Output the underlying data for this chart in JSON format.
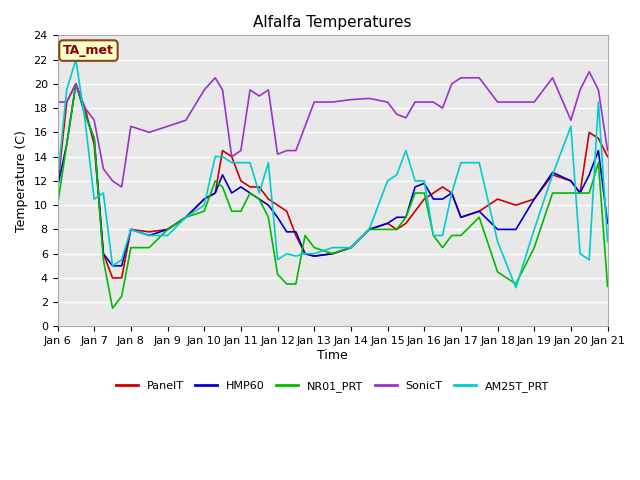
{
  "title": "Alfalfa Temperatures",
  "xlabel": "Time",
  "ylabel": "Temperature (C)",
  "ylim": [
    0,
    24
  ],
  "background_color": "#ffffff",
  "plot_bg_color": "#e8e8e8",
  "annotation_text": "TA_met",
  "annotation_color": "#8B0000",
  "annotation_bg": "#ffffcc",
  "annotation_border": "#8B4513",
  "x_tick_labels": [
    "Jan 6",
    "Jan 7",
    "Jan 8",
    "Jan 9",
    "Jan 10",
    "Jan 11",
    "Jan 12",
    "Jan 13",
    "Jan 14",
    "Jan 15",
    "Jan 16",
    "Jan 17",
    "Jan 18",
    "Jan 19",
    "Jan 20",
    "Jan 21"
  ],
  "legend_labels": [
    "PanelT",
    "HMP60",
    "NR01_PRT",
    "SonicT",
    "AM25T_PRT"
  ],
  "legend_colors": [
    "#cc0000",
    "#0000cc",
    "#00bb00",
    "#9933cc",
    "#00cccc"
  ],
  "series": {
    "PanelT": {
      "color": "#cc0000",
      "x": [
        0,
        0.25,
        0.5,
        0.75,
        1.0,
        1.25,
        1.5,
        1.75,
        2.0,
        2.5,
        3.0,
        3.5,
        4.0,
        4.3,
        4.5,
        4.75,
        5.0,
        5.25,
        5.5,
        5.75,
        6.0,
        6.25,
        6.5,
        6.75,
        7.0,
        7.5,
        8.0,
        8.5,
        9.0,
        9.25,
        9.5,
        9.75,
        10.0,
        10.25,
        10.5,
        10.75,
        11.0,
        11.5,
        12.0,
        12.5,
        13.0,
        13.5,
        14.0,
        14.25,
        14.5,
        14.75,
        15.0
      ],
      "y": [
        11.5,
        18.5,
        20.0,
        18.0,
        15.0,
        6.0,
        4.0,
        4.0,
        8.0,
        7.8,
        8.0,
        9.0,
        10.5,
        11.0,
        14.5,
        14.0,
        12.0,
        11.5,
        11.5,
        10.5,
        10.0,
        9.5,
        7.5,
        6.0,
        5.8,
        6.0,
        6.5,
        8.0,
        8.5,
        8.0,
        8.5,
        9.5,
        10.5,
        11.0,
        11.5,
        11.0,
        9.0,
        9.5,
        10.5,
        10.0,
        10.5,
        12.5,
        12.0,
        11.0,
        16.0,
        15.5,
        14.0
      ]
    },
    "HMP60": {
      "color": "#0000cc",
      "x": [
        0,
        0.25,
        0.5,
        0.75,
        1.0,
        1.25,
        1.5,
        1.75,
        2.0,
        2.5,
        3.0,
        3.5,
        4.0,
        4.3,
        4.5,
        4.75,
        5.0,
        5.25,
        5.5,
        5.75,
        6.0,
        6.25,
        6.5,
        6.75,
        7.0,
        7.5,
        8.0,
        8.5,
        9.0,
        9.25,
        9.5,
        9.75,
        10.0,
        10.25,
        10.5,
        10.75,
        11.0,
        11.5,
        12.0,
        12.5,
        13.0,
        13.5,
        14.0,
        14.25,
        14.5,
        14.75,
        15.0
      ],
      "y": [
        11.5,
        15.0,
        20.0,
        17.5,
        15.5,
        6.0,
        5.0,
        5.0,
        8.0,
        7.5,
        8.0,
        9.0,
        10.5,
        11.0,
        12.5,
        11.0,
        11.5,
        11.0,
        10.5,
        10.0,
        9.0,
        7.8,
        7.8,
        6.0,
        5.8,
        6.0,
        6.5,
        8.0,
        8.5,
        9.0,
        9.0,
        11.5,
        11.8,
        10.5,
        10.5,
        11.0,
        9.0,
        9.5,
        8.0,
        8.0,
        10.5,
        12.7,
        12.0,
        11.0,
        12.5,
        14.5,
        8.5
      ]
    },
    "NR01_PRT": {
      "color": "#00bb00",
      "x": [
        0,
        0.25,
        0.5,
        0.75,
        1.0,
        1.25,
        1.5,
        1.75,
        2.0,
        2.5,
        3.0,
        3.5,
        4.0,
        4.3,
        4.5,
        4.75,
        5.0,
        5.25,
        5.5,
        5.75,
        6.0,
        6.25,
        6.5,
        6.75,
        7.0,
        7.5,
        8.0,
        8.5,
        9.0,
        9.25,
        9.5,
        9.75,
        10.0,
        10.25,
        10.5,
        10.75,
        11.0,
        11.5,
        12.0,
        12.5,
        13.0,
        13.5,
        14.0,
        14.25,
        14.5,
        14.75,
        15.0
      ],
      "y": [
        10.0,
        15.0,
        20.0,
        17.5,
        15.5,
        5.5,
        1.5,
        2.5,
        6.5,
        6.5,
        8.0,
        9.0,
        9.5,
        12.0,
        11.5,
        9.5,
        9.5,
        11.0,
        10.5,
        9.0,
        4.3,
        3.5,
        3.5,
        7.5,
        6.5,
        6.0,
        6.5,
        8.0,
        8.0,
        8.0,
        9.0,
        11.0,
        11.0,
        7.5,
        6.5,
        7.5,
        7.5,
        9.0,
        4.5,
        3.5,
        6.5,
        11.0,
        11.0,
        11.0,
        11.0,
        13.5,
        3.3
      ]
    },
    "SonicT": {
      "color": "#9933cc",
      "x": [
        0,
        0.25,
        0.5,
        0.75,
        1.0,
        1.25,
        1.5,
        1.75,
        2.0,
        2.5,
        3.0,
        3.5,
        4.0,
        4.3,
        4.5,
        4.75,
        5.0,
        5.25,
        5.5,
        5.75,
        6.0,
        6.25,
        6.5,
        6.75,
        7.0,
        7.5,
        8.0,
        8.5,
        9.0,
        9.25,
        9.5,
        9.75,
        10.0,
        10.25,
        10.5,
        10.75,
        11.0,
        11.5,
        12.0,
        12.5,
        13.0,
        13.5,
        14.0,
        14.25,
        14.5,
        14.75,
        15.0
      ],
      "y": [
        18.5,
        18.5,
        20.0,
        18.0,
        17.0,
        13.0,
        12.0,
        11.5,
        16.5,
        16.0,
        16.5,
        17.0,
        19.5,
        20.5,
        19.5,
        14.0,
        14.5,
        19.5,
        19.0,
        19.5,
        14.2,
        14.5,
        14.5,
        16.5,
        18.5,
        18.5,
        18.7,
        18.8,
        18.5,
        17.5,
        17.2,
        18.5,
        18.5,
        18.5,
        18.0,
        20.0,
        20.5,
        20.5,
        18.5,
        18.5,
        18.5,
        20.5,
        17.0,
        19.5,
        21.0,
        19.5,
        14.5
      ]
    },
    "AM25T_PRT": {
      "color": "#00cccc",
      "x": [
        0,
        0.25,
        0.5,
        0.75,
        1.0,
        1.25,
        1.5,
        1.75,
        2.0,
        2.5,
        3.0,
        3.5,
        4.0,
        4.3,
        4.5,
        4.75,
        5.0,
        5.25,
        5.5,
        5.75,
        6.0,
        6.25,
        6.5,
        6.75,
        7.0,
        7.5,
        8.0,
        8.5,
        9.0,
        9.25,
        9.5,
        9.75,
        10.0,
        10.25,
        10.5,
        10.75,
        11.0,
        11.5,
        12.0,
        12.5,
        13.0,
        13.5,
        14.0,
        14.25,
        14.5,
        14.75,
        15.0
      ],
      "y": [
        12.0,
        19.5,
        22.0,
        17.0,
        10.5,
        11.0,
        5.0,
        5.5,
        8.0,
        7.5,
        7.5,
        9.0,
        10.0,
        14.0,
        14.0,
        13.5,
        13.5,
        13.5,
        11.0,
        13.5,
        5.5,
        6.0,
        5.8,
        6.0,
        6.0,
        6.5,
        6.5,
        8.0,
        12.0,
        12.5,
        14.5,
        12.0,
        12.0,
        7.5,
        7.5,
        11.0,
        13.5,
        13.5,
        7.0,
        3.2,
        8.0,
        12.5,
        16.5,
        6.0,
        5.5,
        18.5,
        7.0
      ]
    }
  }
}
